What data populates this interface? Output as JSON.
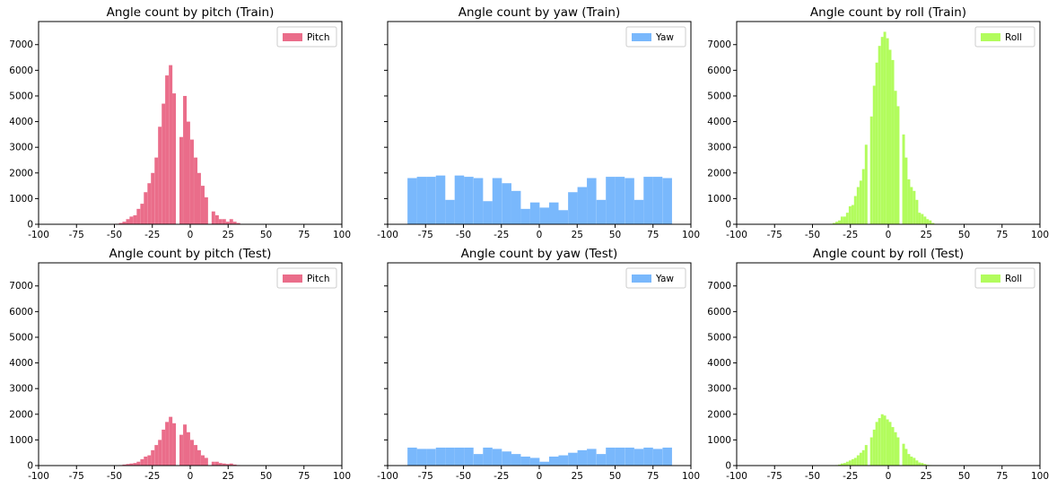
{
  "chart_data": [
    {
      "type": "bar",
      "title": "Angle count by pitch (Train)",
      "xlabel": "",
      "ylabel": "",
      "xlim": [
        -100,
        100
      ],
      "ylim": [
        0,
        7900
      ],
      "x_ticks": [
        -100,
        -75,
        -50,
        -25,
        0,
        25,
        50,
        75,
        100
      ],
      "y_ticks": [
        0,
        1000,
        2000,
        3000,
        4000,
        5000,
        6000,
        7000
      ],
      "show_y_tick_labels": true,
      "legend_position": "upper right",
      "color": "#ea6d8a",
      "series": [
        {
          "name": "Pitch",
          "bin_width": 2.35,
          "x": [
            -49.4,
            -47.0,
            -44.7,
            -42.3,
            -40.0,
            -37.6,
            -35.3,
            -32.9,
            -30.6,
            -28.2,
            -25.9,
            -23.5,
            -21.2,
            -18.8,
            -16.5,
            -14.1,
            -11.8,
            -9.4,
            -7.1,
            -4.7,
            -2.4,
            0.0,
            2.4,
            4.7,
            7.1,
            9.4,
            11.8,
            14.1,
            16.5,
            18.8,
            21.2,
            23.5,
            25.9,
            28.2,
            30.6
          ],
          "values": [
            20,
            50,
            100,
            200,
            300,
            350,
            600,
            800,
            1250,
            1600,
            2000,
            2600,
            3800,
            4700,
            5800,
            6200,
            5100,
            0,
            3400,
            5000,
            4000,
            3300,
            2600,
            2000,
            1500,
            1050,
            0,
            500,
            350,
            200,
            200,
            100,
            200,
            100,
            50
          ]
        }
      ]
    },
    {
      "type": "bar",
      "title": "Angle count by yaw (Train)",
      "xlabel": "",
      "ylabel": "",
      "xlim": [
        -100,
        100
      ],
      "ylim": [
        0,
        7900
      ],
      "x_ticks": [
        -100,
        -75,
        -50,
        -25,
        0,
        25,
        50,
        75,
        100
      ],
      "y_ticks": [
        0,
        1000,
        2000,
        3000,
        4000,
        5000,
        6000,
        7000
      ],
      "show_y_tick_labels": false,
      "legend_position": "upper right",
      "color": "#79b8fc",
      "series": [
        {
          "name": "Yaw",
          "bin_width": 6.23,
          "x": [
            -86.9,
            -80.7,
            -74.5,
            -68.2,
            -62.0,
            -55.8,
            -49.6,
            -43.3,
            -37.1,
            -30.9,
            -24.6,
            -18.4,
            -12.2,
            -6.0,
            0.3,
            6.5,
            12.7,
            19.0,
            25.2,
            31.4,
            37.7,
            43.9,
            50.1,
            56.4,
            62.6,
            68.8,
            75.0,
            81.3
          ],
          "values": [
            1800,
            1850,
            1850,
            1900,
            950,
            1900,
            1850,
            1800,
            900,
            1800,
            1600,
            1300,
            600,
            850,
            650,
            850,
            550,
            1250,
            1450,
            1800,
            950,
            1850,
            1850,
            1800,
            950,
            1850,
            1850,
            1800
          ]
        }
      ]
    },
    {
      "type": "bar",
      "title": "Angle count by roll (Train)",
      "xlabel": "",
      "ylabel": "",
      "xlim": [
        -100,
        100
      ],
      "ylim": [
        0,
        7900
      ],
      "x_ticks": [
        -100,
        -75,
        -50,
        -25,
        0,
        25,
        50,
        75,
        100
      ],
      "y_ticks": [
        0,
        1000,
        2000,
        3000,
        4000,
        5000,
        6000,
        7000
      ],
      "show_y_tick_labels": true,
      "legend_position": "upper right",
      "color": "#b2fc5d",
      "series": [
        {
          "name": "Roll",
          "bin_width": 1.76,
          "x": [
            -38.4,
            -36.7,
            -34.9,
            -33.1,
            -31.4,
            -29.6,
            -27.9,
            -26.1,
            -24.3,
            -22.6,
            -20.8,
            -19.0,
            -17.3,
            -15.5,
            -13.8,
            -12.0,
            -10.2,
            -8.5,
            -6.7,
            -4.9,
            -3.2,
            -1.4,
            0.3,
            2.1,
            3.9,
            5.6,
            7.4,
            9.2,
            10.9,
            12.7,
            14.4,
            16.2,
            18.0,
            19.7,
            21.5,
            23.3,
            25.0,
            26.8,
            28.6
          ],
          "values": [
            20,
            50,
            100,
            150,
            300,
            300,
            450,
            700,
            750,
            1100,
            1450,
            1700,
            2150,
            3100,
            0,
            4200,
            5400,
            6300,
            6950,
            7300,
            7500,
            7250,
            6800,
            6400,
            5200,
            4600,
            0,
            3500,
            2600,
            1750,
            1450,
            1300,
            950,
            450,
            400,
            300,
            200,
            150,
            50
          ]
        }
      ]
    },
    {
      "type": "bar",
      "title": "Angle count by pitch (Test)",
      "xlabel": "",
      "ylabel": "",
      "xlim": [
        -100,
        100
      ],
      "ylim": [
        0,
        7900
      ],
      "x_ticks": [
        -100,
        -75,
        -50,
        -25,
        0,
        25,
        50,
        75,
        100
      ],
      "y_ticks": [
        0,
        1000,
        2000,
        3000,
        4000,
        5000,
        6000,
        7000
      ],
      "show_y_tick_labels": true,
      "legend_position": "upper right",
      "color": "#ea6d8a",
      "series": [
        {
          "name": "Pitch",
          "bin_width": 2.35,
          "x": [
            -49.4,
            -47.0,
            -44.7,
            -42.3,
            -40.0,
            -37.6,
            -35.3,
            -32.9,
            -30.6,
            -28.2,
            -25.9,
            -23.5,
            -21.2,
            -18.8,
            -16.5,
            -14.1,
            -11.8,
            -9.4,
            -7.1,
            -4.7,
            -2.4,
            0.0,
            2.4,
            4.7,
            7.1,
            9.4,
            11.8,
            14.1,
            16.5,
            18.8,
            21.2,
            23.5,
            25.9,
            28.2,
            30.6
          ],
          "values": [
            10,
            20,
            40,
            60,
            80,
            100,
            150,
            250,
            350,
            400,
            600,
            800,
            1000,
            1400,
            1700,
            1900,
            1650,
            0,
            1200,
            1600,
            1300,
            1000,
            800,
            600,
            400,
            300,
            0,
            150,
            150,
            100,
            80,
            60,
            80,
            40,
            20
          ]
        }
      ]
    },
    {
      "type": "bar",
      "title": "Angle count by yaw (Test)",
      "xlabel": "",
      "ylabel": "",
      "xlim": [
        -100,
        100
      ],
      "ylim": [
        0,
        7900
      ],
      "x_ticks": [
        -100,
        -75,
        -50,
        -25,
        0,
        25,
        50,
        75,
        100
      ],
      "y_ticks": [
        0,
        1000,
        2000,
        3000,
        4000,
        5000,
        6000,
        7000
      ],
      "show_y_tick_labels": false,
      "legend_position": "upper right",
      "color": "#79b8fc",
      "series": [
        {
          "name": "Yaw",
          "bin_width": 6.23,
          "x": [
            -86.9,
            -80.7,
            -74.5,
            -68.2,
            -62.0,
            -55.8,
            -49.6,
            -43.3,
            -37.1,
            -30.9,
            -24.6,
            -18.4,
            -12.2,
            -6.0,
            0.3,
            6.5,
            12.7,
            19.0,
            25.2,
            31.4,
            37.7,
            43.9,
            50.1,
            56.4,
            62.6,
            68.8,
            75.0,
            81.3
          ],
          "values": [
            700,
            650,
            650,
            700,
            700,
            700,
            700,
            450,
            700,
            650,
            550,
            450,
            350,
            300,
            150,
            350,
            400,
            500,
            600,
            650,
            450,
            700,
            700,
            700,
            650,
            700,
            650,
            700
          ]
        }
      ]
    },
    {
      "type": "bar",
      "title": "Angle count by roll (Test)",
      "xlabel": "",
      "ylabel": "",
      "xlim": [
        -100,
        100
      ],
      "ylim": [
        0,
        7900
      ],
      "x_ticks": [
        -100,
        -75,
        -50,
        -25,
        0,
        25,
        50,
        75,
        100
      ],
      "y_ticks": [
        0,
        1000,
        2000,
        3000,
        4000,
        5000,
        6000,
        7000
      ],
      "show_y_tick_labels": true,
      "legend_position": "upper right",
      "color": "#b2fc5d",
      "series": [
        {
          "name": "Roll",
          "bin_width": 1.76,
          "x": [
            -38.4,
            -36.7,
            -34.9,
            -33.1,
            -31.4,
            -29.6,
            -27.9,
            -26.1,
            -24.3,
            -22.6,
            -20.8,
            -19.0,
            -17.3,
            -15.5,
            -13.8,
            -12.0,
            -10.2,
            -8.5,
            -6.7,
            -4.9,
            -3.2,
            -1.4,
            0.3,
            2.1,
            3.9,
            5.6,
            7.4,
            9.2,
            10.9,
            12.7,
            14.4,
            16.2,
            18.0,
            19.7,
            21.5,
            23.3,
            25.0,
            26.8,
            28.6
          ],
          "values": [
            5,
            10,
            20,
            40,
            80,
            100,
            150,
            200,
            250,
            300,
            400,
            500,
            600,
            800,
            0,
            1100,
            1400,
            1700,
            1850,
            2000,
            1950,
            1800,
            1700,
            1500,
            1300,
            1100,
            0,
            850,
            650,
            450,
            350,
            300,
            200,
            120,
            100,
            60,
            30,
            20,
            10
          ]
        }
      ]
    }
  ]
}
